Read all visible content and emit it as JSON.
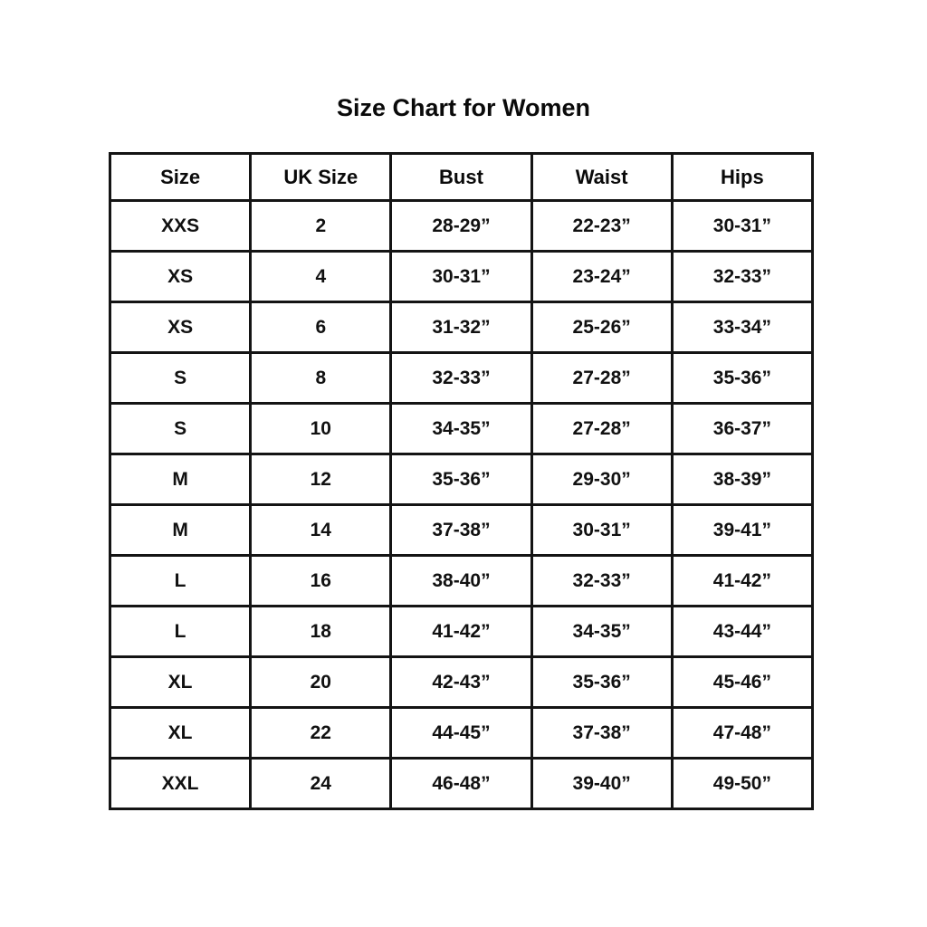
{
  "page_title": "Size Chart for Women",
  "chart_data": {
    "type": "table",
    "title": "Size Chart for Women",
    "columns": [
      "Size",
      "UK Size",
      "Bust",
      "Waist",
      "Hips"
    ],
    "rows": [
      [
        "XXS",
        "2",
        "28-29”",
        "22-23”",
        "30-31”"
      ],
      [
        "XS",
        "4",
        "30-31”",
        "23-24”",
        "32-33”"
      ],
      [
        "XS",
        "6",
        "31-32”",
        "25-26”",
        "33-34”"
      ],
      [
        "S",
        "8",
        "32-33”",
        "27-28”",
        "35-36”"
      ],
      [
        "S",
        "10",
        "34-35”",
        "27-28”",
        "36-37”"
      ],
      [
        "M",
        "12",
        "35-36”",
        "29-30”",
        "38-39”"
      ],
      [
        "M",
        "14",
        "37-38”",
        "30-31”",
        "39-41”"
      ],
      [
        "L",
        "16",
        "38-40”",
        "32-33”",
        "41-42”"
      ],
      [
        "L",
        "18",
        "41-42”",
        "34-35”",
        "43-44”"
      ],
      [
        "XL",
        "20",
        "42-43”",
        "35-36”",
        "45-46”"
      ],
      [
        "XL",
        "22",
        "44-45”",
        "37-38”",
        "47-48”"
      ],
      [
        "XXL",
        "24",
        "46-48”",
        "39-40”",
        "49-50”"
      ]
    ],
    "layout": {
      "grid": "on",
      "border_color": "#141414",
      "background": "#ffffff",
      "text_color": "#111111"
    }
  }
}
